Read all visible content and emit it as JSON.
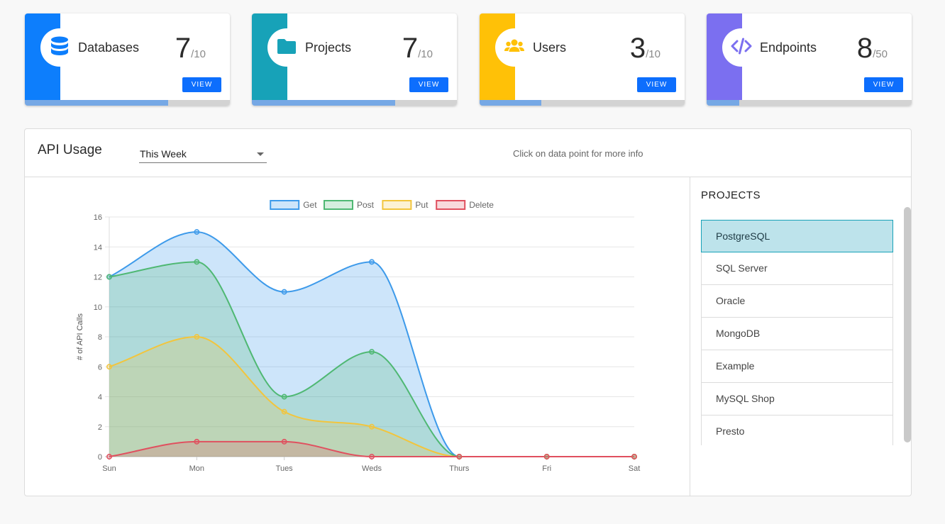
{
  "cards": [
    {
      "label": "Databases",
      "count": "7",
      "limit": "/10",
      "view": "VIEW",
      "color": "#0d7efc",
      "icon": "database-icon",
      "progress": 0.7
    },
    {
      "label": "Projects",
      "count": "7",
      "limit": "/10",
      "view": "VIEW",
      "color": "#17a2b8",
      "icon": "folder-icon",
      "progress": 0.7
    },
    {
      "label": "Users",
      "count": "3",
      "limit": "/10",
      "view": "VIEW",
      "color": "#ffc107",
      "icon": "users-icon",
      "progress": 0.3
    },
    {
      "label": "Endpoints",
      "count": "8",
      "limit": "/50",
      "view": "VIEW",
      "color": "#7b6ff0",
      "icon": "code-icon",
      "progress": 0.16
    }
  ],
  "api_usage": {
    "title": "API Usage",
    "period": "This Week",
    "hint": "Click on data point for more info"
  },
  "projects": {
    "title": "PROJECTS",
    "items": [
      "PostgreSQL",
      "SQL Server",
      "Oracle",
      "MongoDB",
      "Example",
      "MySQL Shop",
      "Presto"
    ],
    "active": "PostgreSQL"
  },
  "chart_data": {
    "type": "area",
    "categories": [
      "Sun",
      "Mon",
      "Tues",
      "Weds",
      "Thurs",
      "Fri",
      "Sat"
    ],
    "ylabel": "# of API Calls",
    "xlabel": "",
    "ylim": [
      0,
      16
    ],
    "yticks": [
      0,
      2,
      4,
      6,
      8,
      10,
      12,
      14,
      16
    ],
    "legend_position": "top",
    "grid": true,
    "series": [
      {
        "name": "Get",
        "values": [
          12,
          15,
          11,
          13,
          0,
          0,
          0
        ],
        "color": "#3d9aea",
        "fill": "rgba(61,154,234,0.26)"
      },
      {
        "name": "Post",
        "values": [
          12,
          13,
          4,
          7,
          0,
          0,
          0
        ],
        "color": "#4fb873",
        "fill": "rgba(79,184,115,0.24)"
      },
      {
        "name": "Put",
        "values": [
          6,
          8,
          3,
          2,
          0,
          0,
          0
        ],
        "color": "#f2c53d",
        "fill": "rgba(242,197,61,0.22)"
      },
      {
        "name": "Delete",
        "values": [
          0,
          1,
          1,
          0,
          0,
          0,
          0
        ],
        "color": "#e0505f",
        "fill": "rgba(224,80,95,0.22)"
      }
    ]
  }
}
